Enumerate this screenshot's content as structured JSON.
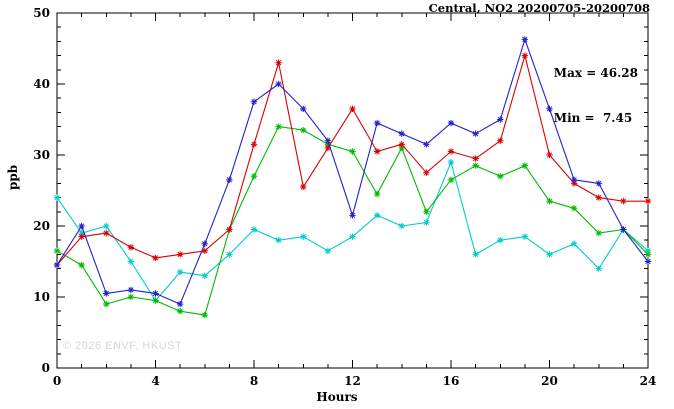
{
  "watermark": "© 2026 ENVF, HKUST",
  "chart_data": {
    "type": "line",
    "title": "Central, NO2 20200705-20200708",
    "xlabel": "Hours",
    "ylabel": "ppb",
    "xlim": [
      0,
      24
    ],
    "ylim": [
      0,
      50
    ],
    "x_major_ticks": [
      0,
      4,
      8,
      12,
      16,
      20,
      24
    ],
    "y_major_ticks": [
      0,
      10,
      20,
      30,
      40,
      50
    ],
    "x_minor_step": 1,
    "y_minor_step": 2,
    "grid": false,
    "legend": "none",
    "marker": "asterisk",
    "annotations": {
      "max": "Max = 46.28",
      "min": "Min =  7.45"
    },
    "x": [
      0,
      1,
      2,
      3,
      4,
      5,
      6,
      7,
      8,
      9,
      10,
      11,
      12,
      13,
      14,
      15,
      16,
      17,
      18,
      19,
      20,
      21,
      22,
      23,
      24
    ],
    "series": [
      {
        "name": "cyan-series",
        "color": "#00cccc",
        "values": [
          24,
          19,
          20,
          15,
          9.5,
          13.5,
          13,
          16,
          19.5,
          18,
          18.5,
          16.5,
          18.5,
          21.5,
          20,
          20.5,
          29,
          16,
          18,
          18.5,
          16,
          17.5,
          14,
          19.5,
          16.5
        ]
      },
      {
        "name": "green-series",
        "color": "#00bb00",
        "values": [
          16.5,
          14.5,
          9,
          10,
          9.5,
          8,
          7.45,
          19.5,
          27,
          34,
          33.5,
          31.5,
          30.5,
          24.5,
          31,
          22,
          26.5,
          28.5,
          27,
          28.5,
          23.5,
          22.5,
          19,
          19.5,
          16
        ]
      },
      {
        "name": "red-series",
        "color": "#dd0000",
        "values": [
          14.5,
          18.5,
          19,
          17,
          15.5,
          16,
          16.5,
          19.5,
          31.5,
          43,
          25.5,
          31,
          36.5,
          30.5,
          31.5,
          27.5,
          30.5,
          29.5,
          32,
          44,
          30,
          26,
          24,
          23.5,
          23.5
        ]
      },
      {
        "name": "blue-series",
        "color": "#2222cc",
        "values": [
          14.5,
          20,
          10.5,
          11,
          10.5,
          9,
          17.5,
          26.5,
          37.5,
          40,
          36.5,
          32,
          21.5,
          34.5,
          33,
          31.5,
          34.5,
          33,
          35,
          46.28,
          36.5,
          26.5,
          26,
          19.5,
          15
        ]
      }
    ]
  }
}
